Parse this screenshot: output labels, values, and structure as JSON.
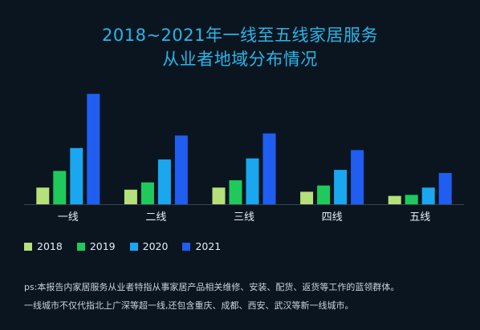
{
  "title_line1": "2018~2021年一线至五线家居服务",
  "title_line2": "从业者地域分布情况",
  "note_line1": "ps:本报告内家居服务从业者特指从事家居产品相关维修、安装、配货、返货等工作的蓝领群体。",
  "note_line2": "一线城市不仅代指北上广深等超一线,还包含重庆、成都、西安、武汉等新一线城市。",
  "colors": {
    "2018": "#b5e07a",
    "2019": "#20c95c",
    "2020": "#1aa7ef",
    "2021": "#1f5ef0",
    "background": "#0b1520",
    "baseline": "#3a4350",
    "title": "#28b6e8"
  },
  "chart_data": {
    "type": "bar",
    "categories": [
      "一线",
      "二线",
      "三线",
      "四线",
      "五线"
    ],
    "series": [
      {
        "name": "2018",
        "values": [
          16,
          14,
          16,
          12,
          8
        ]
      },
      {
        "name": "2019",
        "values": [
          32,
          21,
          23,
          18,
          9
        ]
      },
      {
        "name": "2020",
        "values": [
          54,
          43,
          44,
          33,
          16
        ]
      },
      {
        "name": "2021",
        "values": [
          106,
          66,
          68,
          52,
          30
        ]
      }
    ],
    "title": "2018~2021年一线至五线家居服务从业者地域分布情况",
    "xlabel": "",
    "ylabel": "",
    "ylim": [
      0,
      110
    ],
    "grid": false,
    "legend_position": "bottom-left"
  }
}
